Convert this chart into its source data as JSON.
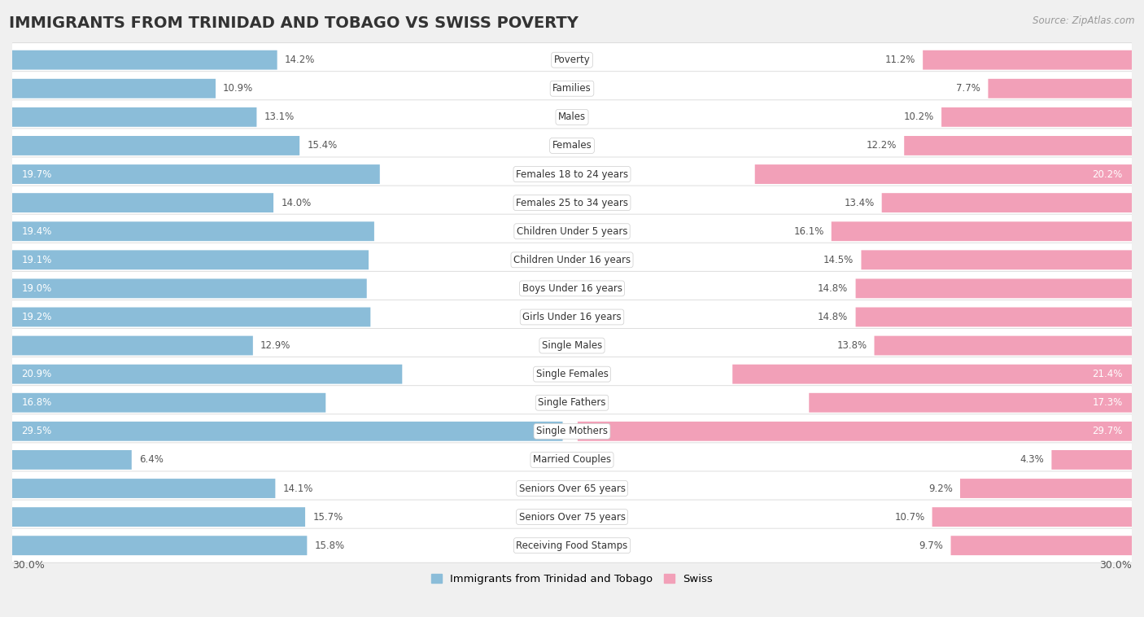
{
  "title": "IMMIGRANTS FROM TRINIDAD AND TOBAGO VS SWISS POVERTY",
  "source": "Source: ZipAtlas.com",
  "categories": [
    "Poverty",
    "Families",
    "Males",
    "Females",
    "Females 18 to 24 years",
    "Females 25 to 34 years",
    "Children Under 5 years",
    "Children Under 16 years",
    "Boys Under 16 years",
    "Girls Under 16 years",
    "Single Males",
    "Single Females",
    "Single Fathers",
    "Single Mothers",
    "Married Couples",
    "Seniors Over 65 years",
    "Seniors Over 75 years",
    "Receiving Food Stamps"
  ],
  "left_values": [
    14.2,
    10.9,
    13.1,
    15.4,
    19.7,
    14.0,
    19.4,
    19.1,
    19.0,
    19.2,
    12.9,
    20.9,
    16.8,
    29.5,
    6.4,
    14.1,
    15.7,
    15.8
  ],
  "right_values": [
    11.2,
    7.7,
    10.2,
    12.2,
    20.2,
    13.4,
    16.1,
    14.5,
    14.8,
    14.8,
    13.8,
    21.4,
    17.3,
    29.7,
    4.3,
    9.2,
    10.7,
    9.7
  ],
  "left_color": "#8bbdd9",
  "right_color": "#f2a0b8",
  "background_color": "#f0f0f0",
  "bar_bg_color": "#ffffff",
  "max_val": 30.0,
  "left_legend": "Immigrants from Trinidad and Tobago",
  "right_legend": "Swiss",
  "title_fontsize": 14,
  "label_fontsize": 8.5,
  "category_fontsize": 8.5,
  "axis_fontsize": 9,
  "highlight_threshold": 16.5
}
